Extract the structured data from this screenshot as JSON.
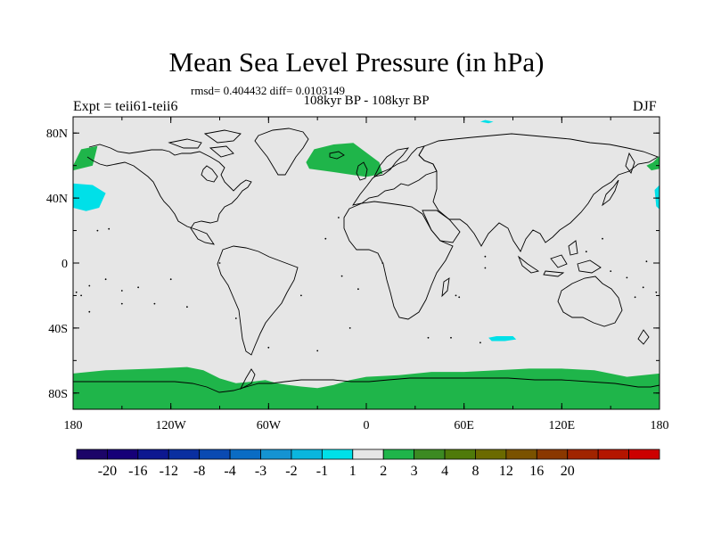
{
  "title": "Mean Sea Level Pressure (in hPa)",
  "stats": "rmsd= 0.404432 diff= 0.0103149",
  "subtitle": "108kyr BP - 108kyr BP",
  "left_label": "Expt = teii61-teii6",
  "right_label": "DJF",
  "map": {
    "projection": "cylindrical-equidistant",
    "lon_range": [
      -180,
      180
    ],
    "lat_range": [
      -90,
      90
    ],
    "x_ticks": [
      {
        "value": -180,
        "label": "180"
      },
      {
        "value": -120,
        "label": "120W"
      },
      {
        "value": -60,
        "label": "60W"
      },
      {
        "value": 0,
        "label": "0"
      },
      {
        "value": 60,
        "label": "60E"
      },
      {
        "value": 120,
        "label": "120E"
      },
      {
        "value": 180,
        "label": "180"
      }
    ],
    "y_ticks": [
      {
        "value": 80,
        "label": "80N"
      },
      {
        "value": 40,
        "label": "40N"
      },
      {
        "value": 0,
        "label": "0"
      },
      {
        "value": -40,
        "label": "40S"
      },
      {
        "value": -80,
        "label": "80S"
      }
    ],
    "background_color": "#e6e6e6",
    "coastline_color": "#000000",
    "anomaly_regions": [
      {
        "name": "Arctic Siberia coast (positive)",
        "color": "#1fb54a",
        "points": [
          [
            -180,
            60
          ],
          [
            -175,
            70
          ],
          [
            -165,
            72
          ],
          [
            -168,
            60
          ],
          [
            -180,
            57
          ]
        ]
      },
      {
        "name": "North Atlantic Greenland-Iceland (positive)",
        "color": "#1fb54a",
        "points": [
          [
            -37,
            62
          ],
          [
            -32,
            70
          ],
          [
            -20,
            73
          ],
          [
            -8,
            74
          ],
          [
            0,
            68
          ],
          [
            8,
            62
          ],
          [
            10,
            55
          ],
          [
            0,
            53
          ],
          [
            -20,
            56
          ],
          [
            -35,
            58
          ]
        ]
      },
      {
        "name": "Bering / East Siberia (positive)",
        "color": "#1fb54a",
        "points": [
          [
            172,
            60
          ],
          [
            176,
            62
          ],
          [
            180,
            66
          ],
          [
            180,
            58
          ],
          [
            175,
            57
          ]
        ]
      },
      {
        "name": "North Pacific east of dateline (negative)",
        "color": "#00e0e8",
        "points": [
          [
            -180,
            49
          ],
          [
            -168,
            48
          ],
          [
            -160,
            43
          ],
          [
            -164,
            34
          ],
          [
            -172,
            32
          ],
          [
            -180,
            34
          ]
        ]
      },
      {
        "name": "North Pacific west of dateline (negative)",
        "color": "#00e0e8",
        "points": [
          [
            180,
            48
          ],
          [
            177,
            45
          ],
          [
            178,
            35
          ],
          [
            180,
            33
          ]
        ]
      },
      {
        "name": "Southern Indian Ocean (negative)",
        "color": "#00e0e8",
        "points": [
          [
            75,
            -46
          ],
          [
            80,
            -45
          ],
          [
            90,
            -45
          ],
          [
            92,
            -47
          ],
          [
            85,
            -48
          ],
          [
            77,
            -48
          ]
        ]
      },
      {
        "name": "Arctic small patch (negative)",
        "color": "#00e0e8",
        "points": [
          [
            70,
            87
          ],
          [
            75,
            86
          ],
          [
            78,
            87
          ],
          [
            73,
            88
          ]
        ]
      },
      {
        "name": "Antarctica (positive)",
        "color": "#1fb54a",
        "points": [
          [
            -180,
            -68
          ],
          [
            -160,
            -66
          ],
          [
            -130,
            -65
          ],
          [
            -110,
            -64
          ],
          [
            -100,
            -66
          ],
          [
            -90,
            -71
          ],
          [
            -80,
            -74
          ],
          [
            -70,
            -73
          ],
          [
            -62,
            -72
          ],
          [
            -55,
            -74
          ],
          [
            -48,
            -75
          ],
          [
            -40,
            -76
          ],
          [
            -30,
            -77
          ],
          [
            -20,
            -75
          ],
          [
            -10,
            -72
          ],
          [
            0,
            -70
          ],
          [
            20,
            -69
          ],
          [
            40,
            -67
          ],
          [
            60,
            -67
          ],
          [
            80,
            -66
          ],
          [
            100,
            -65
          ],
          [
            120,
            -65
          ],
          [
            140,
            -66
          ],
          [
            160,
            -70
          ],
          [
            180,
            -68
          ],
          [
            180,
            -90
          ],
          [
            -180,
            -90
          ]
        ]
      }
    ]
  },
  "colorbar": {
    "colors": [
      "#1c0568",
      "#160078",
      "#0d1890",
      "#0a2fa0",
      "#0a4ab2",
      "#0a6cc4",
      "#1593d2",
      "#0ab6de",
      "#00e0e8",
      "#e6e6e6",
      "#1fb54a",
      "#3c8a22",
      "#4f7a0a",
      "#6b6a00",
      "#7a5200",
      "#8a3800",
      "#a02400",
      "#b41500",
      "#cc0000"
    ],
    "labels": [
      "-20",
      "-16",
      "-12",
      "-8",
      "-4",
      "-3",
      "-2",
      "-1",
      "1",
      "2",
      "3",
      "4",
      "8",
      "12",
      "16",
      "20"
    ]
  },
  "chart_data": {
    "type": "heatmap",
    "title": "Mean Sea Level Pressure (in hPa)",
    "subtitle": "108kyr BP - 108kyr BP",
    "rmsd": 0.404432,
    "diff": 0.0103149,
    "experiment": "teii61-teii6",
    "season": "DJF",
    "x_range": [
      -180,
      180
    ],
    "y_range": [
      -90,
      90
    ],
    "contour_levels": [
      -20,
      -16,
      -12,
      -8,
      -4,
      -3,
      -2,
      -1,
      1,
      2,
      3,
      4,
      8,
      12,
      16,
      20
    ],
    "features": [
      {
        "region": "Antarctic coastal belt",
        "value_range": [
          1,
          2
        ]
      },
      {
        "region": "North Atlantic near Iceland",
        "value_range": [
          1,
          2
        ]
      },
      {
        "region": "Arctic coast of East Siberia",
        "value_range": [
          1,
          2
        ]
      },
      {
        "region": "North Pacific around dateline ~40N",
        "value_range": [
          -2,
          -1
        ]
      },
      {
        "region": "Southern Indian Ocean ~45S 85E",
        "value_range": [
          -2,
          -1
        ]
      }
    ]
  }
}
